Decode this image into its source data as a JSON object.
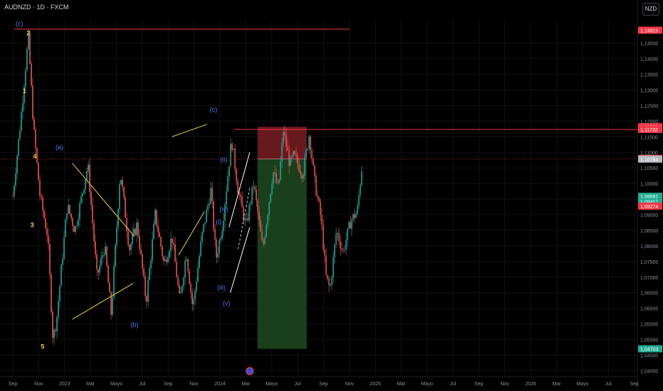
{
  "header": {
    "symbol": "AUDNZD · 1D · FXCM",
    "currency": "NZD"
  },
  "colors": {
    "background": "#000000",
    "up_candle": "#26a69a",
    "down_candle": "#ef5350",
    "trendline": "#f2d13a",
    "wave_label_blue": "#4a7cf0",
    "wave_label_yellow": "#f2d13a",
    "resistance_line": "#f23645",
    "stop_zone": "#7a1d22",
    "target_zone": "#1d4a20"
  },
  "chart_data": {
    "type": "candlestick",
    "symbol": "AUDNZD",
    "timeframe": "1D",
    "source": "FXCM",
    "quote_currency": "NZD",
    "x_ticks": [
      "Sep",
      "Nov",
      "2023",
      "Mar",
      "Mayo",
      "Jul",
      "Sep",
      "Nov",
      "2024",
      "Mar",
      "Mayo",
      "Jul",
      "Sep",
      "Nov",
      "2025",
      "Mar",
      "Mayo",
      "Jul",
      "Sep",
      "Nov",
      "2026",
      "Mar",
      "Mayo",
      "Jul",
      "Sep"
    ],
    "y_ticks": [
      "1,14500",
      "1,14000",
      "1,13500",
      "1,13000",
      "1,12500",
      "1,12000",
      "1,11500",
      "1,11000",
      "1,10500",
      "1,10000",
      "1,09500",
      "1,09000",
      "1,08500",
      "1,08000",
      "1,07500",
      "1,07000",
      "1,06500",
      "1,06000",
      "1,05500",
      "1,05000",
      "1,04500",
      "1,04000"
    ],
    "ylim": [
      1.0385,
      1.152
    ],
    "price_badges": [
      {
        "label": "1,14915",
        "value": 1.14915,
        "color": "#f23645"
      },
      {
        "label": "1,11821",
        "value": 1.11821,
        "color": "#f23645"
      },
      {
        "label": "1,11732",
        "value": 1.11732,
        "color": "#f23645"
      },
      {
        "label": "1,10805",
        "value": 1.10805,
        "color": "#f23645"
      },
      {
        "label": "1,10784",
        "value": 1.10784,
        "color": "#b7b9bf"
      },
      {
        "label": "1,09591",
        "value": 1.09591,
        "color": "#22ab94"
      },
      {
        "label": "1,09417",
        "value": 1.09417,
        "color": "#22ab94"
      },
      {
        "label": "1,09274",
        "value": 1.09274,
        "color": "#f23645"
      },
      {
        "label": "1,04703",
        "value": 1.04703,
        "color": "#22ab94"
      }
    ],
    "levels": [
      {
        "value": 1.14915,
        "from_month": 0.2,
        "to_month": 25
      },
      {
        "value": 1.11732,
        "from_month": 17,
        "to_month": 25
      }
    ],
    "current_price": 1.10784,
    "anchors": [
      {
        "m": 0,
        "p": 1.096
      },
      {
        "m": 0.6,
        "p": 1.12
      },
      {
        "m": 1.2,
        "p": 1.147
      },
      {
        "m": 1.6,
        "p": 1.118
      },
      {
        "m": 2.1,
        "p": 1.096
      },
      {
        "m": 2.7,
        "p": 1.083
      },
      {
        "m": 3.1,
        "p": 1.05
      },
      {
        "m": 3.4,
        "p": 1.057
      },
      {
        "m": 4.2,
        "p": 1.093
      },
      {
        "m": 4.8,
        "p": 1.085
      },
      {
        "m": 5.8,
        "p": 1.106
      },
      {
        "m": 6.5,
        "p": 1.07
      },
      {
        "m": 7.1,
        "p": 1.08
      },
      {
        "m": 7.6,
        "p": 1.058
      },
      {
        "m": 8.3,
        "p": 1.104
      },
      {
        "m": 9.0,
        "p": 1.079
      },
      {
        "m": 9.6,
        "p": 1.087
      },
      {
        "m": 10.3,
        "p": 1.062
      },
      {
        "m": 11.0,
        "p": 1.09
      },
      {
        "m": 11.7,
        "p": 1.074
      },
      {
        "m": 12.3,
        "p": 1.083
      },
      {
        "m": 12.9,
        "p": 1.062
      },
      {
        "m": 13.4,
        "p": 1.078
      },
      {
        "m": 13.9,
        "p": 1.06
      },
      {
        "m": 14.6,
        "p": 1.083
      },
      {
        "m": 15.3,
        "p": 1.098
      },
      {
        "m": 15.7,
        "p": 1.076
      },
      {
        "m": 16.2,
        "p": 1.087
      },
      {
        "m": 16.9,
        "p": 1.114
      },
      {
        "m": 17.4,
        "p": 1.098
      },
      {
        "m": 18.0,
        "p": 1.086
      },
      {
        "m": 18.6,
        "p": 1.1
      },
      {
        "m": 19.3,
        "p": 1.079
      },
      {
        "m": 20.1,
        "p": 1.104
      },
      {
        "m": 20.5,
        "p": 1.098
      },
      {
        "m": 20.9,
        "p": 1.117
      },
      {
        "m": 21.4,
        "p": 1.106
      },
      {
        "m": 21.7,
        "p": 1.109
      },
      {
        "m": 22.4,
        "p": 1.103
      },
      {
        "m": 22.9,
        "p": 1.116
      },
      {
        "m": 23.3,
        "p": 1.101
      },
      {
        "m": 23.8,
        "p": 1.089
      },
      {
        "m": 24.2,
        "p": 1.07
      },
      {
        "m": 24.5,
        "p": 1.066
      },
      {
        "m": 25.0,
        "p": 1.085
      },
      {
        "m": 25.5,
        "p": 1.078
      },
      {
        "m": 26.1,
        "p": 1.088
      },
      {
        "m": 26.6,
        "p": 1.091
      },
      {
        "m": 27.0,
        "p": 1.107
      }
    ],
    "trendlines": [
      {
        "from": [
          0.1,
          1.1495
        ],
        "to": [
          26.0,
          1.1495
        ],
        "color": "#f23645"
      },
      {
        "from": [
          4.6,
          1.1065
        ],
        "to": [
          9.4,
          1.083
        ],
        "color": "#f2d13a"
      },
      {
        "from": [
          4.6,
          1.0565
        ],
        "to": [
          9.3,
          1.068
        ],
        "color": "#f2d13a"
      },
      {
        "from": [
          12.3,
          1.115
        ],
        "to": [
          15.0,
          1.119
        ],
        "color": "#f2d13a"
      },
      {
        "from": [
          12.8,
          1.077
        ],
        "to": [
          14.8,
          1.091
        ],
        "color": "#f2d13a"
      },
      {
        "from": [
          16.7,
          1.086
        ],
        "to": [
          18.3,
          1.11
        ],
        "color": "#ffffff"
      },
      {
        "from": [
          16.8,
          1.065
        ],
        "to": [
          18.3,
          1.086
        ],
        "color": "#ffffff"
      }
    ],
    "wave_labels": [
      {
        "text": "(c)",
        "m": 0.5,
        "p": 1.1505,
        "color": "#4a7cf0"
      },
      {
        "text": "2",
        "m": 1.2,
        "p": 1.1475,
        "color": "#f2d13a"
      },
      {
        "text": "1",
        "m": 0.9,
        "p": 1.129,
        "color": "#f2d13a"
      },
      {
        "text": "4",
        "m": 1.7,
        "p": 1.108,
        "color": "#f2d13a"
      },
      {
        "text": "3",
        "m": 1.5,
        "p": 1.086,
        "color": "#f2d13a"
      },
      {
        "text": "5",
        "m": 2.3,
        "p": 1.047,
        "color": "#f2d13a"
      },
      {
        "text": "(a)",
        "m": 3.6,
        "p": 1.111,
        "color": "#4a7cf0"
      },
      {
        "text": "(b)",
        "m": 9.4,
        "p": 1.054,
        "color": "#4a7cf0"
      },
      {
        "text": "(c)",
        "m": 15.5,
        "p": 1.123,
        "color": "#4a7cf0"
      },
      {
        "text": "(ii)",
        "m": 16.3,
        "p": 1.107,
        "color": "#4a7cf0"
      },
      {
        "text": "(iv)",
        "m": 16.3,
        "p": 1.091,
        "color": "#4a7cf0"
      },
      {
        "text": "(i)",
        "m": 15.9,
        "p": 1.087,
        "color": "#4a7cf0"
      },
      {
        "text": "(iii)",
        "m": 16.1,
        "p": 1.066,
        "color": "#4a7cf0"
      },
      {
        "text": "(v)",
        "m": 16.5,
        "p": 1.061,
        "color": "#4a7cf0"
      }
    ],
    "position": {
      "type": "short",
      "entry": 1.10784,
      "stop": 1.11821,
      "target": 1.04703,
      "from_month": 18.9,
      "to_month": 22.7
    }
  }
}
